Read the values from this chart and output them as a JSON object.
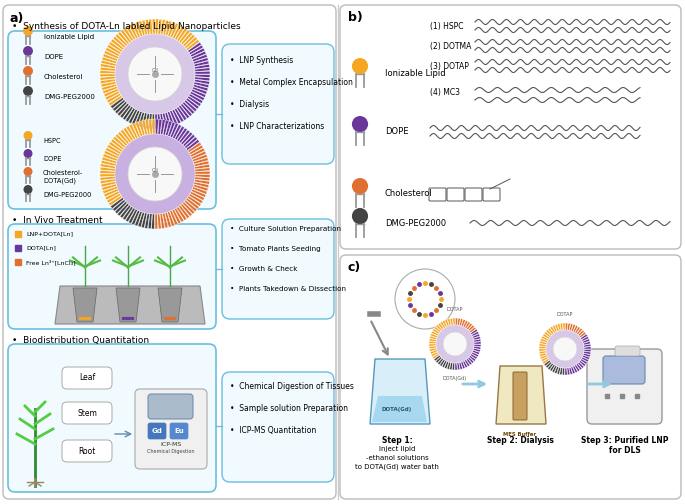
{
  "fig_width": 6.85,
  "fig_height": 5.04,
  "bg_color": "#ffffff",
  "colors": {
    "ionizable": "#f5a623",
    "dope": "#6a3799",
    "cholesterol": "#e07030",
    "dmg": "#444444",
    "box_blue_edge": "#6bbfdf",
    "box_blue_face": "#f0faff",
    "steps_edge": "#6bbfdf",
    "steps_face": "#f0faff",
    "lnp_inner": "#d8c8e8",
    "lnp_inner2": "#c8b0e0",
    "lnp_center": "#f8f8f8",
    "arrow_blue": "#90c8e0",
    "plant_green": "#44aa33",
    "plant_dark": "#228822",
    "pot_gray": "#888888",
    "beaker_blue": "#aaddee",
    "beaker_yellow": "#e8d090"
  },
  "panel_a": {
    "syn_title": "• Synthesis of DOTA-Ln labled Lipid Nanoparticles",
    "syn_legend1": [
      "Ionizable Lipid",
      "DOPE",
      "Cholesterol",
      "DMG-PEG2000"
    ],
    "syn_legend2": [
      "HSPC",
      "DOPE",
      "Cholesterol-\nDOTA(Gd)",
      "DMG-PEG2000"
    ],
    "syn_steps": [
      "LNP Synthesis",
      "Metal Complex Encapsulation",
      "Dialysis",
      "LNP Characterizations"
    ],
    "vivo_title": "• In Vivo Treatment",
    "vivo_legend": [
      "LNP+DOTA[Ln]",
      "DOTA[Ln]",
      "Free Ln³⁺[LnCl₃]"
    ],
    "vivo_steps": [
      "Culture Solution Preparation",
      "Tomato Plants Seeding",
      "Growth & Check",
      "Plants Takedown & Dissection"
    ],
    "bio_title": "• Biodistribution Quantitation",
    "bio_tissues": [
      "Leaf",
      "Stem",
      "Root"
    ],
    "bio_steps": [
      "Chemical Digestion of Tissues",
      "Sample solution Preparation",
      "ICP-MS Quantitation"
    ]
  },
  "panel_b": {
    "ionizable_variants": [
      "(1) HSPC",
      "(2) DOTMA",
      "(3) DOTAP",
      "(4) MC3"
    ],
    "lipid_names": [
      "Ionizable Lipid",
      "DOPE",
      "Cholesterol",
      "DMG-PEG2000"
    ],
    "lipid_colors": [
      "#f5a623",
      "#6a3799",
      "#e07030",
      "#444444"
    ]
  },
  "panel_c": {
    "step1": "Step 1:Inject lipid\n-ethanol solutions\nto DOTA(Gd) water bath",
    "step2": "Step 2: Dialysis",
    "step3": "Step 3: Purified LNP\nfor DLS"
  }
}
